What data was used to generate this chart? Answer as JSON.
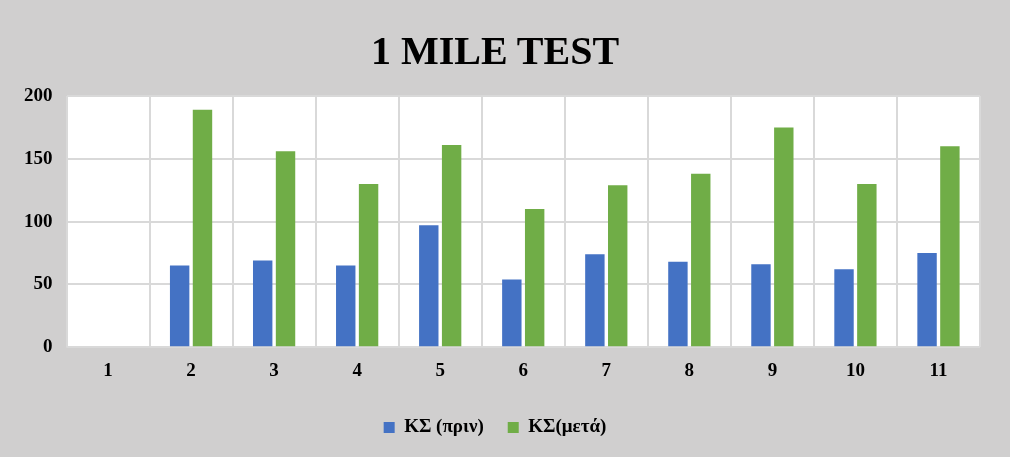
{
  "chart_data": {
    "type": "bar",
    "title": "1 MILE TEST",
    "categories": [
      "1",
      "2",
      "3",
      "4",
      "5",
      "6",
      "7",
      "8",
      "9",
      "10",
      "11"
    ],
    "series": [
      {
        "name": "ΚΣ (πριν)",
        "color": "#4472c4",
        "values": [
          null,
          65,
          69,
          65,
          97,
          54,
          74,
          68,
          66,
          62,
          75
        ]
      },
      {
        "name": "ΚΣ(μετά)",
        "color": "#70ad47",
        "values": [
          null,
          189,
          156,
          130,
          161,
          110,
          129,
          138,
          175,
          130,
          160
        ]
      }
    ],
    "ylim": [
      0,
      200
    ],
    "yticks": [
      0,
      50,
      100,
      150,
      200
    ],
    "grid": true,
    "legend": "bottom"
  }
}
